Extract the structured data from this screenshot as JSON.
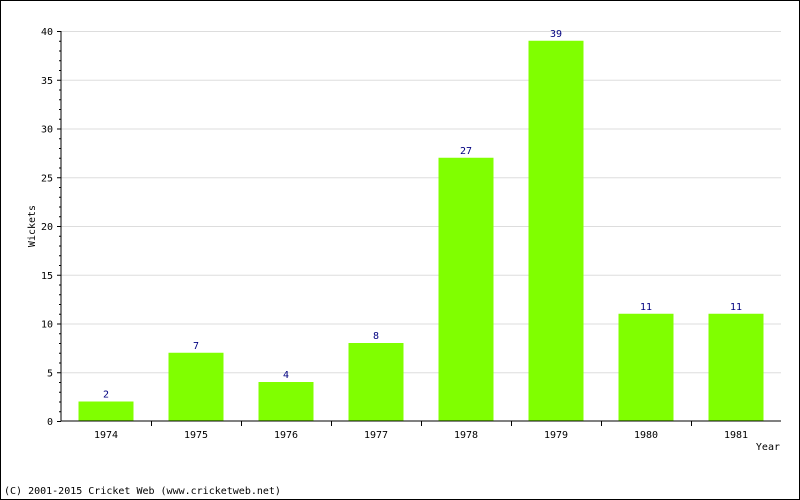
{
  "chart_data": {
    "type": "bar",
    "categories": [
      "1974",
      "1975",
      "1976",
      "1977",
      "1978",
      "1979",
      "1980",
      "1981"
    ],
    "values": [
      2,
      7,
      4,
      8,
      27,
      39,
      11,
      11
    ],
    "xlabel": "Year",
    "ylabel": "Wickets",
    "ylim": [
      0,
      40
    ],
    "yticks": [
      0,
      5,
      10,
      15,
      20,
      25,
      30,
      35,
      40
    ],
    "bar_color": "#80ff00",
    "data_label_color": "#000080",
    "grid": true
  },
  "footer": {
    "copyright": "(C) 2001-2015 Cricket Web (www.cricketweb.net)"
  }
}
